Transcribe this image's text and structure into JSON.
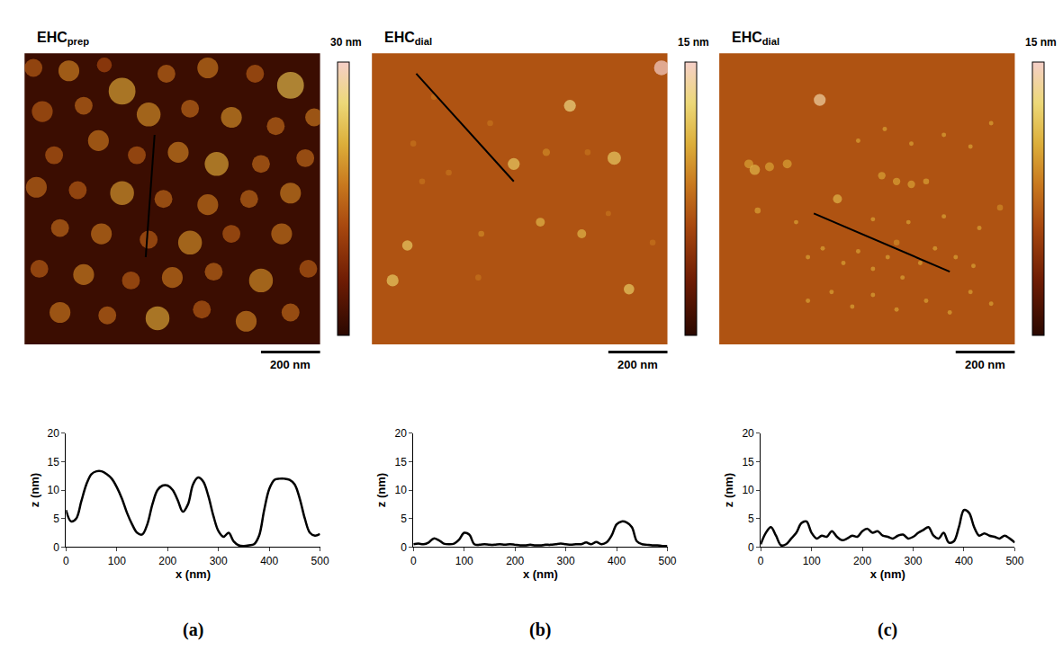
{
  "chart_data": [
    {
      "type": "line",
      "panel": "(a)",
      "image": {
        "title": "EHC",
        "title_subscript": "prep",
        "color_label": "30 nm",
        "color_range": [
          0,
          30
        ],
        "scale_bar": "200 nm",
        "scale_bar_length": 200,
        "extent": [
          0,
          1000
        ],
        "background_height": 1.5,
        "profile_line": [
          [
            440,
            720
          ],
          [
            410,
            300
          ]
        ],
        "particles": [
          [
            30,
            950,
            60,
            14
          ],
          [
            150,
            940,
            70,
            17
          ],
          [
            270,
            960,
            50,
            12
          ],
          [
            330,
            870,
            90,
            20
          ],
          [
            480,
            930,
            60,
            15
          ],
          [
            620,
            950,
            70,
            16
          ],
          [
            780,
            930,
            60,
            14
          ],
          [
            900,
            890,
            90,
            22
          ],
          [
            980,
            780,
            60,
            16
          ],
          [
            60,
            800,
            70,
            14
          ],
          [
            200,
            820,
            60,
            15
          ],
          [
            420,
            790,
            80,
            18
          ],
          [
            560,
            810,
            60,
            15
          ],
          [
            700,
            780,
            70,
            18
          ],
          [
            850,
            750,
            60,
            15
          ],
          [
            100,
            650,
            60,
            14
          ],
          [
            250,
            700,
            70,
            16
          ],
          [
            380,
            650,
            60,
            14
          ],
          [
            520,
            660,
            70,
            17
          ],
          [
            650,
            620,
            80,
            20
          ],
          [
            800,
            620,
            60,
            15
          ],
          [
            950,
            640,
            60,
            15
          ],
          [
            40,
            540,
            70,
            15
          ],
          [
            180,
            530,
            60,
            14
          ],
          [
            330,
            520,
            80,
            19
          ],
          [
            470,
            500,
            60,
            15
          ],
          [
            620,
            480,
            70,
            16
          ],
          [
            760,
            500,
            60,
            15
          ],
          [
            900,
            520,
            70,
            17
          ],
          [
            120,
            400,
            60,
            15
          ],
          [
            260,
            380,
            70,
            16
          ],
          [
            420,
            360,
            60,
            14
          ],
          [
            560,
            350,
            80,
            18
          ],
          [
            700,
            380,
            60,
            14
          ],
          [
            870,
            380,
            70,
            16
          ],
          [
            50,
            260,
            60,
            14
          ],
          [
            200,
            240,
            70,
            17
          ],
          [
            360,
            220,
            60,
            14
          ],
          [
            500,
            230,
            70,
            16
          ],
          [
            640,
            250,
            60,
            15
          ],
          [
            800,
            220,
            80,
            18
          ],
          [
            960,
            260,
            60,
            14
          ],
          [
            120,
            110,
            70,
            16
          ],
          [
            280,
            100,
            60,
            15
          ],
          [
            450,
            90,
            80,
            20
          ],
          [
            600,
            120,
            60,
            14
          ],
          [
            750,
            80,
            70,
            17
          ],
          [
            900,
            110,
            60,
            15
          ]
        ]
      },
      "x_label": "x (nm)",
      "y_label": "z (nm)",
      "xlim": [
        0,
        500
      ],
      "xticks": [
        0,
        100,
        200,
        300,
        400,
        500
      ],
      "ylim": [
        0,
        20
      ],
      "yticks": [
        0,
        5,
        10,
        15,
        20
      ],
      "color": "#000000",
      "x": [
        0,
        10,
        20,
        30,
        40,
        50,
        60,
        70,
        80,
        90,
        100,
        110,
        120,
        130,
        140,
        150,
        160,
        170,
        180,
        190,
        200,
        210,
        220,
        230,
        240,
        250,
        260,
        270,
        280,
        290,
        300,
        310,
        320,
        330,
        340,
        350,
        360,
        370,
        380,
        390,
        400,
        410,
        420,
        430,
        440,
        450,
        460,
        470,
        480,
        490,
        500
      ],
      "values": [
        6.5,
        4.5,
        5,
        8,
        11,
        12.8,
        13.3,
        13.3,
        12.8,
        12,
        10.5,
        8.5,
        6,
        4,
        2.5,
        2.2,
        4,
        7.5,
        10,
        10.8,
        10.8,
        10,
        8.2,
        6.2,
        7.5,
        11,
        12.2,
        11.5,
        9,
        5.5,
        2.8,
        1.8,
        2.5,
        1,
        0.3,
        0.2,
        0.3,
        0.5,
        2,
        6.5,
        10.2,
        11.8,
        12,
        12,
        11.8,
        11,
        8.5,
        5,
        2.5,
        2,
        2.3
      ]
    },
    {
      "type": "line",
      "panel": "(b)",
      "image": {
        "title": "EHC",
        "title_subscript": "dial",
        "color_label": "15 nm",
        "color_range": [
          0,
          15
        ],
        "scale_bar": "200 nm",
        "scale_bar_length": 200,
        "extent": [
          0,
          1000
        ],
        "background_height": 6.5,
        "profile_line": [
          [
            150,
            930
          ],
          [
            480,
            560
          ]
        ],
        "particles": [
          [
            980,
            950,
            50,
            15
          ],
          [
            670,
            820,
            40,
            13
          ],
          [
            820,
            640,
            45,
            12
          ],
          [
            480,
            620,
            40,
            12
          ],
          [
            590,
            660,
            25,
            9
          ],
          [
            140,
            690,
            20,
            8
          ],
          [
            210,
            850,
            20,
            8
          ],
          [
            400,
            760,
            20,
            8
          ],
          [
            730,
            660,
            20,
            8
          ],
          [
            570,
            420,
            30,
            11
          ],
          [
            370,
            380,
            20,
            9
          ],
          [
            710,
            380,
            30,
            11
          ],
          [
            120,
            340,
            35,
            12
          ],
          [
            870,
            190,
            35,
            12
          ],
          [
            70,
            220,
            40,
            12
          ],
          [
            360,
            230,
            20,
            8
          ],
          [
            260,
            590,
            20,
            8
          ],
          [
            170,
            560,
            20,
            8
          ],
          [
            800,
            450,
            18,
            8
          ],
          [
            950,
            350,
            20,
            8
          ]
        ]
      },
      "x_label": "x (nm)",
      "y_label": "z (nm)",
      "xlim": [
        0,
        500
      ],
      "xticks": [
        0,
        100,
        200,
        300,
        400,
        500
      ],
      "ylim": [
        0,
        20
      ],
      "yticks": [
        0,
        5,
        10,
        15,
        20
      ],
      "color": "#000000",
      "x": [
        0,
        10,
        20,
        30,
        40,
        50,
        60,
        70,
        80,
        90,
        100,
        110,
        120,
        130,
        140,
        150,
        160,
        170,
        180,
        190,
        200,
        210,
        220,
        230,
        240,
        250,
        260,
        270,
        280,
        290,
        300,
        310,
        320,
        330,
        340,
        350,
        360,
        370,
        380,
        390,
        400,
        410,
        420,
        430,
        440,
        450,
        460,
        470,
        480,
        490,
        500
      ],
      "values": [
        0.5,
        0.6,
        0.5,
        0.8,
        1.5,
        1.2,
        0.6,
        0.5,
        0.6,
        1.3,
        2.5,
        2.2,
        0.5,
        0.4,
        0.5,
        0.4,
        0.4,
        0.5,
        0.4,
        0.5,
        0.4,
        0.3,
        0.3,
        0.4,
        0.3,
        0.3,
        0.4,
        0.4,
        0.5,
        0.6,
        0.5,
        0.4,
        0.5,
        0.5,
        0.8,
        0.5,
        0.9,
        0.5,
        0.8,
        2,
        4,
        4.5,
        4.3,
        3.5,
        1,
        0.5,
        0.4,
        0.3,
        0.3,
        0.2,
        0.2
      ]
    },
    {
      "type": "line",
      "panel": "(c)",
      "image": {
        "title": "EHC",
        "title_subscript": "dial",
        "color_label": "15 nm",
        "color_range": [
          0,
          15
        ],
        "scale_bar": "200 nm",
        "scale_bar_length": 200,
        "extent": [
          0,
          1000
        ],
        "background_height": 6.5,
        "profile_line": [
          [
            320,
            450
          ],
          [
            780,
            250
          ]
        ],
        "particles": [
          [
            340,
            840,
            40,
            14
          ],
          [
            400,
            500,
            30,
            11
          ],
          [
            100,
            620,
            30,
            10
          ],
          [
            950,
            470,
            20,
            9
          ],
          [
            130,
            460,
            20,
            10
          ],
          [
            600,
            350,
            20,
            9
          ],
          [
            120,
            600,
            35,
            11
          ],
          [
            170,
            610,
            30,
            10
          ],
          [
            230,
            620,
            30,
            10
          ],
          [
            550,
            580,
            25,
            10
          ],
          [
            600,
            560,
            25,
            10
          ],
          [
            650,
            550,
            25,
            10
          ],
          [
            700,
            560,
            20,
            10
          ],
          [
            300,
            300,
            15,
            10
          ],
          [
            350,
            330,
            15,
            10
          ],
          [
            420,
            280,
            15,
            10
          ],
          [
            470,
            320,
            15,
            10
          ],
          [
            520,
            260,
            15,
            10
          ],
          [
            570,
            300,
            15,
            10
          ],
          [
            620,
            230,
            15,
            10
          ],
          [
            680,
            280,
            15,
            10
          ],
          [
            730,
            330,
            15,
            10
          ],
          [
            800,
            300,
            15,
            10
          ],
          [
            860,
            270,
            15,
            10
          ],
          [
            300,
            150,
            15,
            10
          ],
          [
            380,
            180,
            15,
            10
          ],
          [
            450,
            130,
            15,
            10
          ],
          [
            520,
            170,
            15,
            10
          ],
          [
            600,
            120,
            15,
            10
          ],
          [
            700,
            150,
            15,
            10
          ],
          [
            780,
            110,
            15,
            10
          ],
          [
            850,
            180,
            15,
            10
          ],
          [
            920,
            140,
            15,
            10
          ],
          [
            260,
            420,
            15,
            10
          ],
          [
            520,
            430,
            15,
            10
          ],
          [
            640,
            420,
            15,
            10
          ],
          [
            760,
            440,
            15,
            10
          ],
          [
            880,
            400,
            15,
            10
          ],
          [
            470,
            700,
            15,
            10
          ],
          [
            560,
            740,
            15,
            10
          ],
          [
            650,
            690,
            15,
            10
          ],
          [
            760,
            720,
            15,
            10
          ],
          [
            850,
            680,
            15,
            10
          ],
          [
            920,
            760,
            15,
            10
          ]
        ]
      },
      "x_label": "x (nm)",
      "y_label": "z (nm)",
      "xlim": [
        0,
        500
      ],
      "xticks": [
        0,
        100,
        200,
        300,
        400,
        500
      ],
      "ylim": [
        0,
        20
      ],
      "yticks": [
        0,
        5,
        10,
        15,
        20
      ],
      "color": "#000000",
      "x": [
        0,
        10,
        20,
        30,
        40,
        50,
        60,
        70,
        80,
        90,
        100,
        110,
        120,
        130,
        140,
        150,
        160,
        170,
        180,
        190,
        200,
        210,
        220,
        230,
        240,
        250,
        260,
        270,
        280,
        290,
        300,
        310,
        320,
        330,
        340,
        350,
        360,
        370,
        380,
        390,
        400,
        410,
        420,
        430,
        440,
        450,
        460,
        470,
        480,
        490,
        500
      ],
      "values": [
        0.5,
        2.5,
        3.5,
        2,
        0.3,
        0.5,
        1.5,
        2.5,
        4.2,
        4.5,
        2.5,
        1.5,
        2,
        1.8,
        2.8,
        1.8,
        1.2,
        1.5,
        2,
        1.8,
        2.8,
        3.2,
        2.5,
        2.8,
        2,
        1.8,
        1.5,
        2,
        2.2,
        1.5,
        1.8,
        2.5,
        3,
        3.5,
        2,
        1.5,
        2.5,
        0.8,
        1,
        3.5,
        6.5,
        6,
        3.5,
        2,
        2.4,
        2,
        1.8,
        1.5,
        2,
        1.5,
        0.8
      ]
    }
  ]
}
